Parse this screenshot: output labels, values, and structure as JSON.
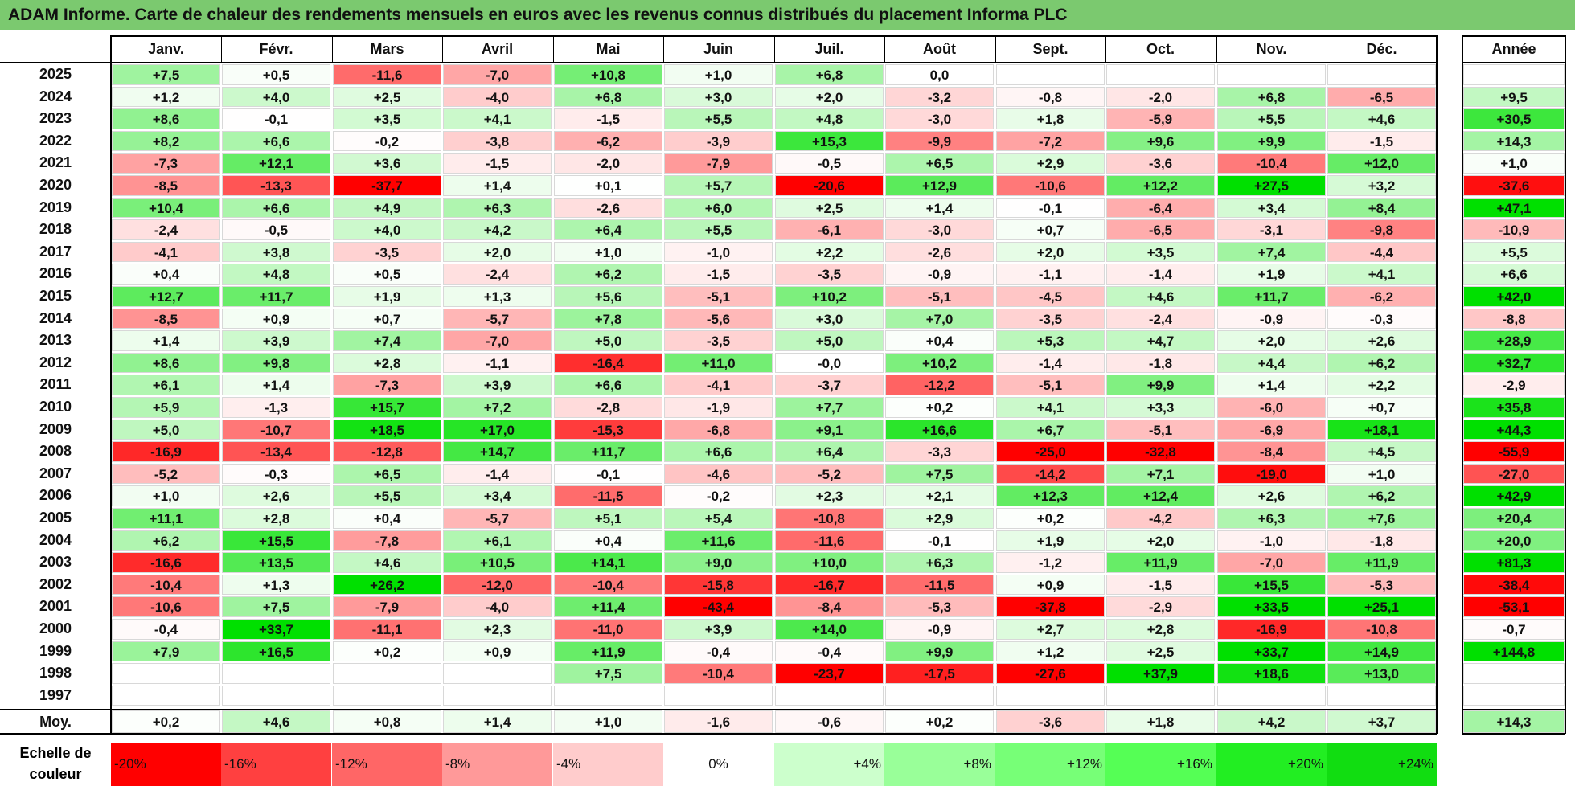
{
  "title": "ADAM Informe. Carte de chaleur des rendements mensuels en euros avec les revenus connus distribués du placement Informa PLC",
  "chart_data": {
    "type": "heatmap",
    "columns": [
      "Janv.",
      "Févr.",
      "Mars",
      "Avril",
      "Mai",
      "Juin",
      "Juil.",
      "Août",
      "Sept.",
      "Oct.",
      "Nov.",
      "Déc."
    ],
    "year_column_label": "Année",
    "average_label": "Moy.",
    "rows": [
      {
        "year": "2025",
        "months": [
          "+7,5",
          "+0,5",
          "-11,6",
          "-7,0",
          "+10,8",
          "+1,0",
          "+6,8",
          "0,0",
          "",
          "",
          "",
          ""
        ],
        "annual": ""
      },
      {
        "year": "2024",
        "months": [
          "+1,2",
          "+4,0",
          "+2,5",
          "-4,0",
          "+6,8",
          "+3,0",
          "+2,0",
          "-3,2",
          "-0,8",
          "-2,0",
          "+6,8",
          "-6,5"
        ],
        "annual": "+9,5"
      },
      {
        "year": "2023",
        "months": [
          "+8,6",
          "-0,1",
          "+3,5",
          "+4,1",
          "-1,5",
          "+5,5",
          "+4,8",
          "-3,0",
          "+1,8",
          "-5,9",
          "+5,5",
          "+4,6"
        ],
        "annual": "+30,5"
      },
      {
        "year": "2022",
        "months": [
          "+8,2",
          "+6,6",
          "-0,2",
          "-3,8",
          "-6,2",
          "-3,9",
          "+15,3",
          "-9,9",
          "-7,2",
          "+9,6",
          "+9,9",
          "-1,5"
        ],
        "annual": "+14,3"
      },
      {
        "year": "2021",
        "months": [
          "-7,3",
          "+12,1",
          "+3,6",
          "-1,5",
          "-2,0",
          "-7,9",
          "-0,5",
          "+6,5",
          "+2,9",
          "-3,6",
          "-10,4",
          "+12,0"
        ],
        "annual": "+1,0"
      },
      {
        "year": "2020",
        "months": [
          "-8,5",
          "-13,3",
          "-37,7",
          "+1,4",
          "+0,1",
          "+5,7",
          "-20,6",
          "+12,9",
          "-10,6",
          "+12,2",
          "+27,5",
          "+3,2"
        ],
        "annual": "-37,6"
      },
      {
        "year": "2019",
        "months": [
          "+10,4",
          "+6,6",
          "+4,9",
          "+6,3",
          "-2,6",
          "+6,0",
          "+2,5",
          "+1,4",
          "-0,1",
          "-6,4",
          "+3,4",
          "+8,4"
        ],
        "annual": "+47,1"
      },
      {
        "year": "2018",
        "months": [
          "-2,4",
          "-0,5",
          "+4,0",
          "+4,2",
          "+6,4",
          "+5,5",
          "-6,1",
          "-3,0",
          "+0,7",
          "-6,5",
          "-3,1",
          "-9,8"
        ],
        "annual": "-10,9"
      },
      {
        "year": "2017",
        "months": [
          "-4,1",
          "+3,8",
          "-3,5",
          "+2,0",
          "+1,0",
          "-1,0",
          "+2,2",
          "-2,6",
          "+2,0",
          "+3,5",
          "+7,4",
          "-4,4"
        ],
        "annual": "+5,5"
      },
      {
        "year": "2016",
        "months": [
          "+0,4",
          "+4,8",
          "+0,5",
          "-2,4",
          "+6,2",
          "-1,5",
          "-3,5",
          "-0,9",
          "-1,1",
          "-1,4",
          "+1,9",
          "+4,1"
        ],
        "annual": "+6,6"
      },
      {
        "year": "2015",
        "months": [
          "+12,7",
          "+11,7",
          "+1,9",
          "+1,3",
          "+5,6",
          "-5,1",
          "+10,2",
          "-5,1",
          "-4,5",
          "+4,6",
          "+11,7",
          "-6,2"
        ],
        "annual": "+42,0"
      },
      {
        "year": "2014",
        "months": [
          "-8,5",
          "+0,9",
          "+0,7",
          "-5,7",
          "+7,8",
          "-5,6",
          "+3,0",
          "+7,0",
          "-3,5",
          "-2,4",
          "-0,9",
          "-0,3"
        ],
        "annual": "-8,8"
      },
      {
        "year": "2013",
        "months": [
          "+1,4",
          "+3,9",
          "+7,4",
          "-7,0",
          "+5,0",
          "-3,5",
          "+5,0",
          "+0,4",
          "+5,3",
          "+4,7",
          "+2,0",
          "+2,6"
        ],
        "annual": "+28,9"
      },
      {
        "year": "2012",
        "months": [
          "+8,6",
          "+9,8",
          "+2,8",
          "-1,1",
          "-16,4",
          "+11,0",
          "-0,0",
          "+10,2",
          "-1,4",
          "-1,8",
          "+4,4",
          "+6,2"
        ],
        "annual": "+32,7"
      },
      {
        "year": "2011",
        "months": [
          "+6,1",
          "+1,4",
          "-7,3",
          "+3,9",
          "+6,6",
          "-4,1",
          "-3,7",
          "-12,2",
          "-5,1",
          "+9,9",
          "+1,4",
          "+2,2"
        ],
        "annual": "-2,9"
      },
      {
        "year": "2010",
        "months": [
          "+5,9",
          "-1,3",
          "+15,7",
          "+7,2",
          "-2,8",
          "-1,9",
          "+7,7",
          "+0,2",
          "+4,1",
          "+3,3",
          "-6,0",
          "+0,7"
        ],
        "annual": "+35,8"
      },
      {
        "year": "2009",
        "months": [
          "+5,0",
          "-10,7",
          "+18,5",
          "+17,0",
          "-15,3",
          "-6,8",
          "+9,1",
          "+16,6",
          "+6,7",
          "-5,1",
          "-6,9",
          "+18,1"
        ],
        "annual": "+44,3"
      },
      {
        "year": "2008",
        "months": [
          "-16,9",
          "-13,4",
          "-12,8",
          "+14,7",
          "+11,7",
          "+6,6",
          "+6,4",
          "-3,3",
          "-25,0",
          "-32,8",
          "-8,4",
          "+4,5"
        ],
        "annual": "-55,9"
      },
      {
        "year": "2007",
        "months": [
          "-5,2",
          "-0,3",
          "+6,5",
          "-1,4",
          "-0,1",
          "-4,6",
          "-5,2",
          "+7,5",
          "-14,2",
          "+7,1",
          "-19,0",
          "+1,0"
        ],
        "annual": "-27,0"
      },
      {
        "year": "2006",
        "months": [
          "+1,0",
          "+2,6",
          "+5,5",
          "+3,4",
          "-11,5",
          "-0,2",
          "+2,3",
          "+2,1",
          "+12,3",
          "+12,4",
          "+2,6",
          "+6,2"
        ],
        "annual": "+42,9"
      },
      {
        "year": "2005",
        "months": [
          "+11,1",
          "+2,8",
          "+0,4",
          "-5,7",
          "+5,1",
          "+5,4",
          "-10,8",
          "+2,9",
          "+0,2",
          "-4,2",
          "+6,3",
          "+7,6"
        ],
        "annual": "+20,4"
      },
      {
        "year": "2004",
        "months": [
          "+6,2",
          "+15,5",
          "-7,8",
          "+6,1",
          "+0,4",
          "+11,6",
          "-11,6",
          "-0,1",
          "+1,9",
          "+2,0",
          "-1,0",
          "-1,8"
        ],
        "annual": "+20,0"
      },
      {
        "year": "2003",
        "months": [
          "-16,6",
          "+13,5",
          "+4,6",
          "+10,5",
          "+14,1",
          "+9,0",
          "+10,0",
          "+6,3",
          "-1,2",
          "+11,9",
          "-7,0",
          "+11,9"
        ],
        "annual": "+81,3"
      },
      {
        "year": "2002",
        "months": [
          "-10,4",
          "+1,3",
          "+26,2",
          "-12,0",
          "-10,4",
          "-15,8",
          "-16,7",
          "-11,5",
          "+0,9",
          "-1,5",
          "+15,5",
          "-5,3"
        ],
        "annual": "-38,4"
      },
      {
        "year": "2001",
        "months": [
          "-10,6",
          "+7,5",
          "-7,9",
          "-4,0",
          "+11,4",
          "-43,4",
          "-8,4",
          "-5,3",
          "-37,8",
          "-2,9",
          "+33,5",
          "+25,1"
        ],
        "annual": "-53,1"
      },
      {
        "year": "2000",
        "months": [
          "-0,4",
          "+33,7",
          "-11,1",
          "+2,3",
          "-11,0",
          "+3,9",
          "+14,0",
          "-0,9",
          "+2,7",
          "+2,8",
          "-16,9",
          "-10,8"
        ],
        "annual": "-0,7"
      },
      {
        "year": "1999",
        "months": [
          "+7,9",
          "+16,5",
          "+0,2",
          "+0,9",
          "+11,9",
          "-0,4",
          "-0,4",
          "+9,9",
          "+1,2",
          "+2,5",
          "+33,7",
          "+14,9"
        ],
        "annual": "+144,8"
      },
      {
        "year": "1998",
        "months": [
          "",
          "",
          "",
          "",
          "+7,5",
          "-10,4",
          "-23,7",
          "-17,5",
          "-27,6",
          "+37,9",
          "+18,6",
          "+13,0"
        ],
        "annual": ""
      },
      {
        "year": "1997",
        "months": [
          "",
          "",
          "",
          "",
          "",
          "",
          "",
          "",
          "",
          "",
          "",
          ""
        ],
        "annual": ""
      }
    ],
    "average": {
      "months": [
        "+0,2",
        "+4,6",
        "+0,8",
        "+1,4",
        "+1,0",
        "-1,6",
        "-0,6",
        "+0,2",
        "-3,6",
        "+1,8",
        "+4,2",
        "+3,7"
      ],
      "annual": "+14,3"
    },
    "color_scale": {
      "label": "Echelle de couleur",
      "steps": [
        "-20%",
        "-16%",
        "-12%",
        "-8%",
        "-4%",
        "0%",
        "+4%",
        "+8%",
        "+12%",
        "+16%",
        "+20%",
        "+24%"
      ],
      "step_values": [
        -20,
        -16,
        -12,
        -8,
        -4,
        0,
        4,
        8,
        12,
        16,
        20,
        24
      ],
      "colors": [
        "#ff0000",
        "#ff4040",
        "#ff6666",
        "#ff9999",
        "#ffcccc",
        "#ffffff",
        "#ccffcc",
        "#99ff99",
        "#77ff77",
        "#55ff55",
        "#22ee22",
        "#11dd11"
      ]
    }
  }
}
